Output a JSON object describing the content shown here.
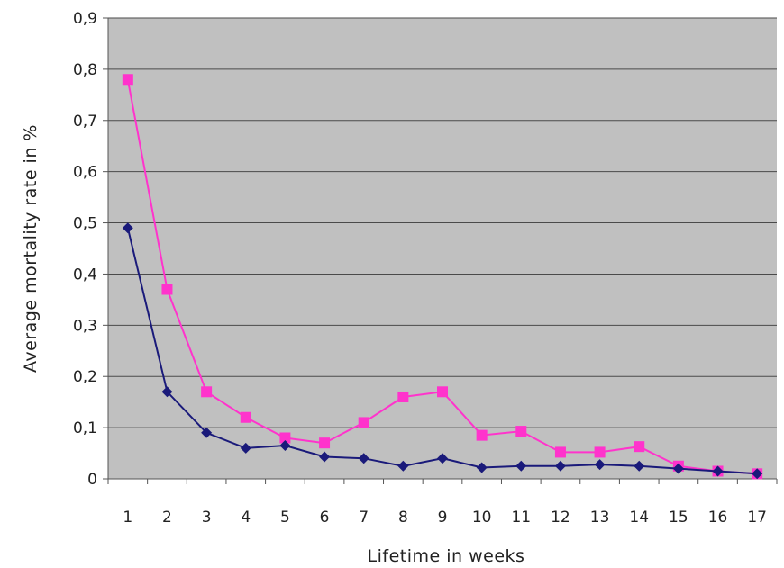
{
  "chart_data": {
    "type": "line",
    "title": "",
    "xlabel": "Lifetime in weeks",
    "ylabel": "Average mortality rate in %",
    "categories": [
      "1",
      "2",
      "3",
      "4",
      "5",
      "6",
      "7",
      "8",
      "9",
      "10",
      "11",
      "12",
      "13",
      "14",
      "15",
      "16",
      "17"
    ],
    "ylim": [
      0,
      0.9
    ],
    "yticks": [
      "0",
      "0,1",
      "0,2",
      "0,3",
      "0,4",
      "0,5",
      "0,6",
      "0,7",
      "0,8",
      "0,9"
    ],
    "grid": true,
    "legend": "none",
    "plot_background": "#c0c0c0",
    "series": [
      {
        "color": "#ff33cc",
        "marker": "square",
        "values": [
          0.78,
          0.37,
          0.17,
          0.12,
          0.08,
          0.07,
          0.11,
          0.16,
          0.17,
          0.085,
          0.093,
          0.052,
          0.052,
          0.063,
          0.025,
          0.015,
          0.01
        ]
      },
      {
        "color": "#1a1a7a",
        "marker": "diamond",
        "values": [
          0.49,
          0.17,
          0.09,
          0.06,
          0.065,
          0.043,
          0.04,
          0.025,
          0.04,
          0.022,
          0.025,
          0.025,
          0.028,
          0.025,
          0.02,
          0.015,
          0.01
        ]
      }
    ]
  }
}
